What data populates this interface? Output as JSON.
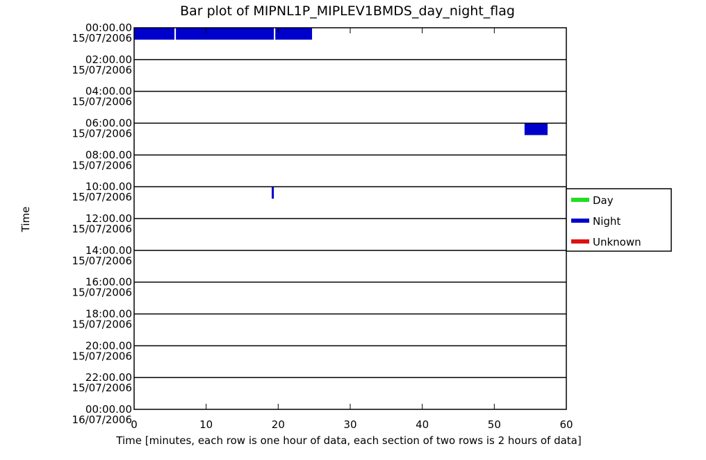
{
  "chart_data": {
    "type": "bar",
    "title": "Bar plot of MIPNL1P_MIPLEV1BMDS_day_night_flag",
    "xlabel": "Time [minutes, each row is one hour of data, each section of two rows is 2 hours of data]",
    "ylabel": "Time",
    "xlim": [
      0,
      60
    ],
    "x_ticks": [
      "0",
      "10",
      "20",
      "30",
      "40",
      "50",
      "60"
    ],
    "x_tick_values": [
      0,
      10,
      20,
      30,
      40,
      50,
      60
    ],
    "y_ticks": [
      {
        "time": "00:00.00",
        "date": "15/07/2006"
      },
      {
        "time": "02:00.00",
        "date": "15/07/2006"
      },
      {
        "time": "04:00.00",
        "date": "15/07/2006"
      },
      {
        "time": "06:00.00",
        "date": "15/07/2006"
      },
      {
        "time": "08:00.00",
        "date": "15/07/2006"
      },
      {
        "time": "10:00.00",
        "date": "15/07/2006"
      },
      {
        "time": "12:00.00",
        "date": "15/07/2006"
      },
      {
        "time": "14:00.00",
        "date": "15/07/2006"
      },
      {
        "time": "16:00.00",
        "date": "15/07/2006"
      },
      {
        "time": "18:00.00",
        "date": "15/07/2006"
      },
      {
        "time": "20:00.00",
        "date": "15/07/2006"
      },
      {
        "time": "22:00.00",
        "date": "15/07/2006"
      },
      {
        "time": "00:00.00",
        "date": "16/07/2006"
      }
    ],
    "series": [
      {
        "name": "Day",
        "color": "#22dd22",
        "segments": []
      },
      {
        "name": "Night",
        "color": "#0000cc",
        "segments": [
          {
            "hour": 0,
            "start": 0.0,
            "end": 5.6
          },
          {
            "hour": 0,
            "start": 5.8,
            "end": 19.4
          },
          {
            "hour": 0,
            "start": 19.6,
            "end": 24.7
          },
          {
            "hour": 6,
            "start": 54.2,
            "end": 57.4
          },
          {
            "hour": 10,
            "start": 19.1,
            "end": 19.4
          }
        ]
      },
      {
        "name": "Unknown",
        "color": "#dd1111",
        "segments": []
      }
    ],
    "legend_position": "right",
    "grid": "horizontal lines every 2 hours"
  }
}
